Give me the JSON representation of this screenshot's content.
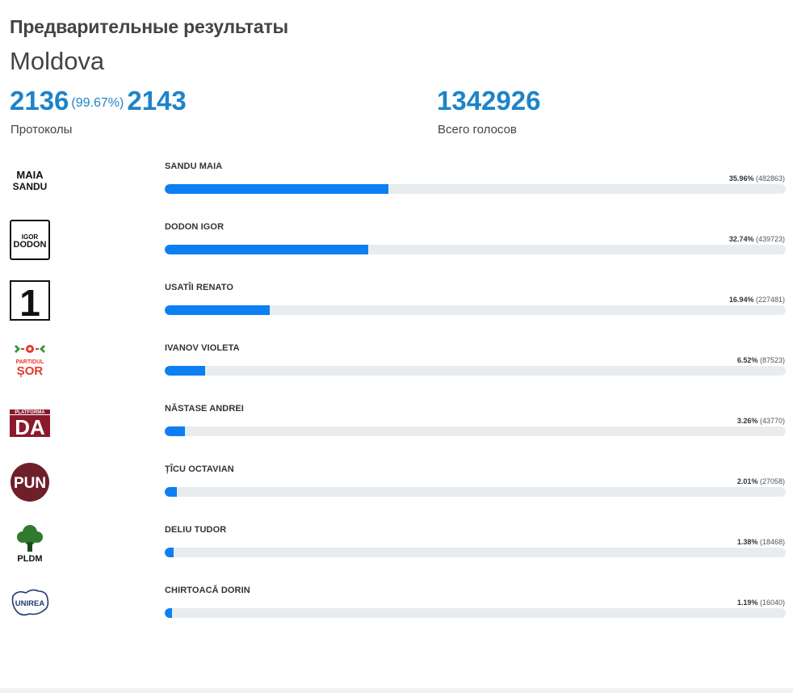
{
  "header": {
    "subtitle": "Предварительные результаты",
    "region": "Moldova"
  },
  "stats": {
    "protocols_counted": "2136",
    "protocols_percent": "(99.67%)",
    "protocols_total": "2143",
    "protocols_label": "Протоколы",
    "total_votes": "1342926",
    "total_votes_label": "Всего голосов"
  },
  "colors": {
    "accent": "#1e83c8",
    "bar_fill": "#0d7ff2",
    "bar_track": "#e9ecef"
  },
  "candidates": [
    {
      "name": "SANDU MAIA",
      "percent": "35.96%",
      "votes": "(482863)",
      "share": 35.96,
      "logo": {
        "icon": "maia-sandu-logo",
        "text": [
          "MAIA",
          "SANDU"
        ]
      }
    },
    {
      "name": "DODON IGOR",
      "percent": "32.74%",
      "votes": "(439723)",
      "share": 32.74,
      "logo": {
        "icon": "igor-dodon-logo",
        "text": [
          "IGOR",
          "DODON"
        ]
      }
    },
    {
      "name": "USATÎI RENATO",
      "percent": "16.94%",
      "votes": "(227481)",
      "share": 16.94,
      "logo": {
        "icon": "partidul-nostru-logo",
        "text": [
          "1"
        ]
      }
    },
    {
      "name": "IVANOV VIOLETA",
      "percent": "6.52%",
      "votes": "(87523)",
      "share": 6.52,
      "logo": {
        "icon": "partidul-sor-logo",
        "text": [
          "PARTIDUL",
          "ȘOR"
        ]
      }
    },
    {
      "name": "NĂSTASE ANDREI",
      "percent": "3.26%",
      "votes": "(43770)",
      "share": 3.26,
      "logo": {
        "icon": "platforma-da-logo",
        "text": [
          "PLATFORMA",
          "DA"
        ]
      }
    },
    {
      "name": "ȚÎCU OCTAVIAN",
      "percent": "2.01%",
      "votes": "(27058)",
      "share": 2.01,
      "logo": {
        "icon": "pun-logo",
        "text": [
          "PUN"
        ]
      }
    },
    {
      "name": "DELIU TUDOR",
      "percent": "1.38%",
      "votes": "(18468)",
      "share": 1.38,
      "logo": {
        "icon": "pldm-tree-logo",
        "text": [
          "PLDM"
        ]
      }
    },
    {
      "name": "CHIRTOACĂ DORIN",
      "percent": "1.19%",
      "votes": "(16040)",
      "share": 1.19,
      "logo": {
        "icon": "unirea-map-logo",
        "text": [
          "UNIREA"
        ]
      }
    }
  ]
}
